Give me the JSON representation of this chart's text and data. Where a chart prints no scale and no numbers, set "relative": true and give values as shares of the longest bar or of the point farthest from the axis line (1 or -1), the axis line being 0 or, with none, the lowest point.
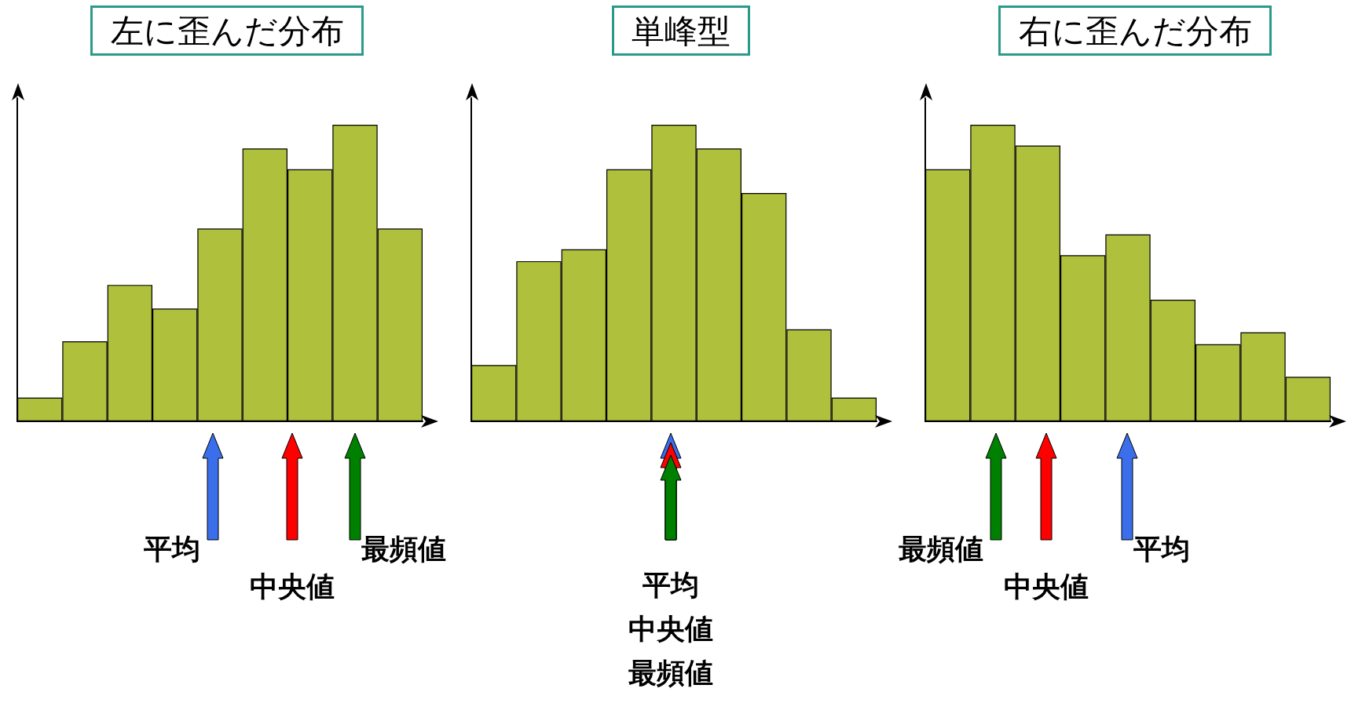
{
  "chart_data": [
    {
      "type": "bar",
      "title": "左に歪んだ分布",
      "relative": true,
      "categories": [
        null,
        null,
        null,
        null,
        null,
        null,
        null,
        null,
        null
      ],
      "values": [
        0.08,
        0.27,
        0.46,
        0.38,
        0.65,
        0.92,
        0.85,
        1,
        0.65
      ],
      "color": "#afc03c",
      "annotations": [
        "平均",
        "中央値",
        "最頻値"
      ]
    },
    {
      "type": "bar",
      "title": "単峰型",
      "relative": true,
      "categories": [
        null,
        null,
        null,
        null,
        null,
        null,
        null,
        null,
        null
      ],
      "values": [
        0.19,
        0.54,
        0.58,
        0.85,
        1,
        0.92,
        0.77,
        0.31,
        0.08
      ],
      "color": "#afc03c",
      "annotations": [
        "平均",
        "中央値",
        "最頻値"
      ]
    },
    {
      "type": "bar",
      "title": "右に歪んだ分布",
      "relative": true,
      "categories": [
        null,
        null,
        null,
        null,
        null,
        null,
        null,
        null,
        null
      ],
      "values": [
        0.85,
        1,
        0.93,
        0.56,
        0.63,
        0.41,
        0.26,
        0.3,
        0.15
      ],
      "color": "#afc03c",
      "annotations": [
        "最頻値",
        "中央値",
        "平均"
      ]
    }
  ]
}
